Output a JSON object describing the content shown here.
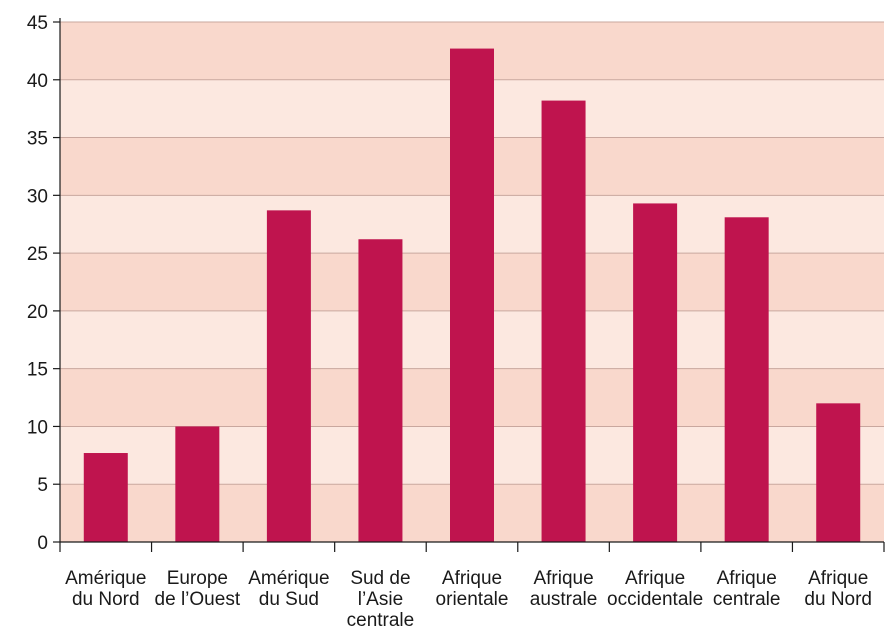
{
  "chart_data": {
    "type": "bar",
    "title": "",
    "xlabel": "",
    "ylabel": "",
    "ylim": [
      0,
      45
    ],
    "yticks": [
      0,
      5,
      10,
      15,
      20,
      25,
      30,
      35,
      40,
      45
    ],
    "grid": true,
    "categories": [
      [
        "Amérique",
        "du Nord"
      ],
      [
        "Europe",
        "de l’Ouest"
      ],
      [
        "Amérique",
        "du Sud"
      ],
      [
        "Sud de",
        "l’Asie",
        "centrale"
      ],
      [
        "Afrique",
        "orientale"
      ],
      [
        "Afrique",
        "australe"
      ],
      [
        "Afrique",
        "occidentale"
      ],
      [
        "Afrique",
        "centrale"
      ],
      [
        "Afrique",
        "du Nord"
      ]
    ],
    "values": [
      7.7,
      10.0,
      28.7,
      26.2,
      42.7,
      38.2,
      29.3,
      28.1,
      12.0
    ],
    "colors": {
      "bar": "#bf144e",
      "band_light": "#fce8e0",
      "band_dark": "#f9d8cc",
      "gridline": "#c9a79e",
      "axis": "#1a1a1a"
    }
  }
}
